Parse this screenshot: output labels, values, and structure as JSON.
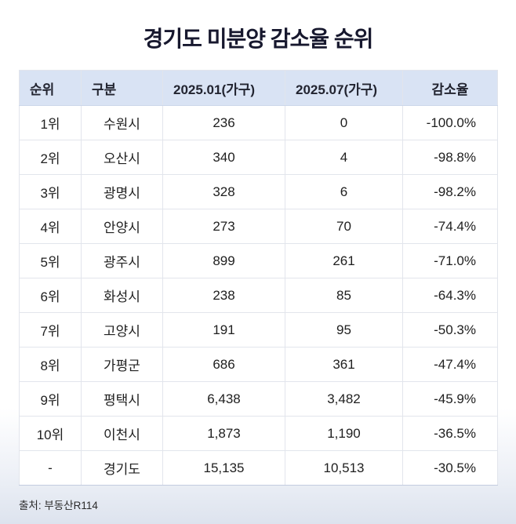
{
  "title": "경기도 미분양 감소율 순위",
  "source": "출처: 부동산R114",
  "colors": {
    "header_bg": "#d9e3f4",
    "title_text": "#17182e",
    "body_text": "#202020",
    "grid_line": "#e2e5ec",
    "page_gradient_bottom": "#dde3ee"
  },
  "chart_data": {
    "type": "table",
    "title": "경기도 미분양 감소율 순위",
    "columns": [
      "순위",
      "구분",
      "2025.01(가구)",
      "2025.07(가구)",
      "감소율"
    ],
    "rows": [
      [
        "1위",
        "수원시",
        "236",
        "0",
        "-100.0%"
      ],
      [
        "2위",
        "오산시",
        "340",
        "4",
        "-98.8%"
      ],
      [
        "3위",
        "광명시",
        "328",
        "6",
        "-98.2%"
      ],
      [
        "4위",
        "안양시",
        "273",
        "70",
        "-74.4%"
      ],
      [
        "5위",
        "광주시",
        "899",
        "261",
        "-71.0%"
      ],
      [
        "6위",
        "화성시",
        "238",
        "85",
        "-64.3%"
      ],
      [
        "7위",
        "고양시",
        "191",
        "95",
        "-50.3%"
      ],
      [
        "8위",
        "가평군",
        "686",
        "361",
        "-47.4%"
      ],
      [
        "9위",
        "평택시",
        "6,438",
        "3,482",
        "-45.9%"
      ],
      [
        "10위",
        "이천시",
        "1,873",
        "1,190",
        "-36.5%"
      ],
      [
        "-",
        "경기도",
        "15,135",
        "10,513",
        "-30.5%"
      ]
    ],
    "source_note": "출처: 부동산R114"
  }
}
